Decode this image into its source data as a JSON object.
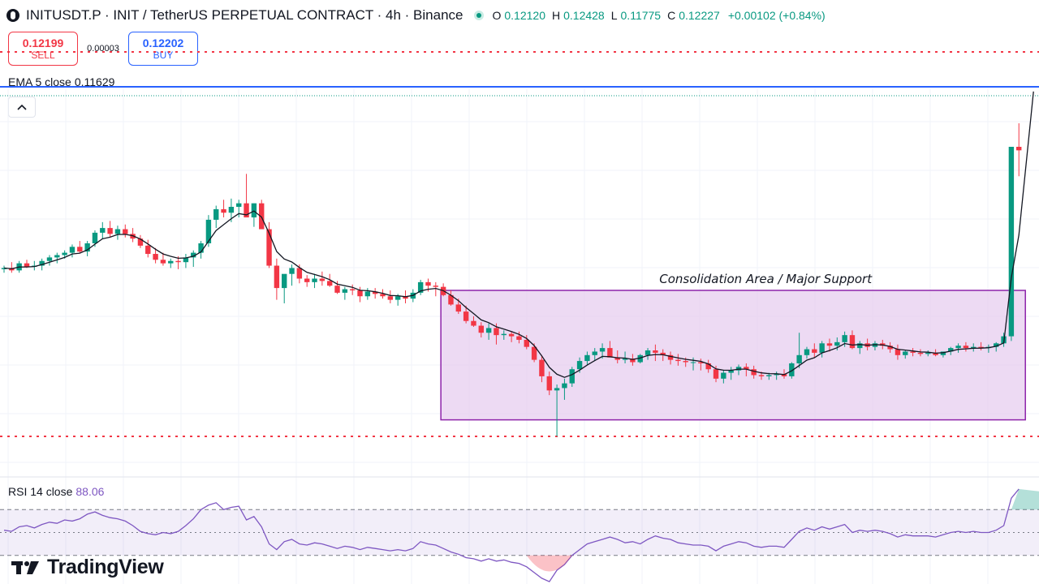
{
  "header": {
    "symbol_title": "INITUSDT.P · INIT / TetherUS PERPETUAL CONTRACT · 4h · Binance",
    "open_label": "O",
    "open": "0.12120",
    "high_label": "H",
    "high": "0.12428",
    "low_label": "L",
    "low": "0.11775",
    "close_label": "C",
    "close": "0.12227",
    "change": "+0.00102 (+0.84%)"
  },
  "trade": {
    "sell_price": "0.12199",
    "sell_label": "SELL",
    "spread": "0.00003",
    "buy_price": "0.12202",
    "buy_label": "BUY"
  },
  "ema_legend": {
    "label": "EMA 5 close",
    "value": "0.11629"
  },
  "rsi_legend": {
    "label": "RSI 14 close",
    "value": "88.06"
  },
  "logo": {
    "text": "TradingView"
  },
  "annotation": {
    "text": "Consolidation Area / Major Support"
  },
  "colors": {
    "up": "#089981",
    "down": "#f23645",
    "ema": "#131722",
    "rsi": "#7e57c2",
    "box_fill": "#e7cdef",
    "box_stroke": "#8e24aa",
    "level_line": "#2962ff"
  },
  "chart_data": {
    "type": "candlestick",
    "timeframe": "4h",
    "price_range": [
      0.0895,
      0.1221
    ],
    "candles_ohlc": [
      [
        0.1066,
        0.1069,
        0.1063,
        0.1067
      ],
      [
        0.1067,
        0.1072,
        0.1063,
        0.1065
      ],
      [
        0.1065,
        0.1073,
        0.1063,
        0.1071
      ],
      [
        0.1071,
        0.1074,
        0.1067,
        0.1068
      ],
      [
        0.1068,
        0.1073,
        0.1065,
        0.1069
      ],
      [
        0.1069,
        0.1075,
        0.1065,
        0.1073
      ],
      [
        0.1073,
        0.1078,
        0.1069,
        0.1076
      ],
      [
        0.1076,
        0.108,
        0.1071,
        0.1078
      ],
      [
        0.1078,
        0.1082,
        0.1075,
        0.108
      ],
      [
        0.108,
        0.1087,
        0.1076,
        0.1085
      ],
      [
        0.1085,
        0.109,
        0.108,
        0.1081
      ],
      [
        0.1081,
        0.109,
        0.1077,
        0.1088
      ],
      [
        0.1088,
        0.1099,
        0.1085,
        0.1097
      ],
      [
        0.1097,
        0.1106,
        0.1092,
        0.1101
      ],
      [
        0.1101,
        0.1107,
        0.1093,
        0.1096
      ],
      [
        0.1096,
        0.1103,
        0.1091,
        0.11
      ],
      [
        0.11,
        0.1104,
        0.1093,
        0.1096
      ],
      [
        0.1096,
        0.1101,
        0.1089,
        0.1092
      ],
      [
        0.1092,
        0.1095,
        0.1084,
        0.1086
      ],
      [
        0.1086,
        0.1091,
        0.1076,
        0.1079
      ],
      [
        0.1079,
        0.1084,
        0.1071,
        0.1074
      ],
      [
        0.1074,
        0.108,
        0.1069,
        0.1071
      ],
      [
        0.1071,
        0.1075,
        0.1067,
        0.1073
      ],
      [
        0.1073,
        0.1077,
        0.1066,
        0.1072
      ],
      [
        0.1072,
        0.1079,
        0.1067,
        0.1076
      ],
      [
        0.1076,
        0.1082,
        0.1068,
        0.108
      ],
      [
        0.108,
        0.109,
        0.1075,
        0.1088
      ],
      [
        0.1088,
        0.1112,
        0.1085,
        0.1108
      ],
      [
        0.1108,
        0.112,
        0.1101,
        0.1117
      ],
      [
        0.1117,
        0.1125,
        0.111,
        0.1114
      ],
      [
        0.1114,
        0.1126,
        0.1106,
        0.1119
      ],
      [
        0.1119,
        0.1125,
        0.111,
        0.1122
      ],
      [
        0.1122,
        0.1147,
        0.1115,
        0.111
      ],
      [
        0.111,
        0.1122,
        0.1102,
        0.1122
      ],
      [
        0.1122,
        0.1125,
        0.11,
        0.11
      ],
      [
        0.11,
        0.1106,
        0.1067,
        0.1069
      ],
      [
        0.1069,
        0.1075,
        0.104,
        0.105
      ],
      [
        0.105,
        0.1058,
        0.1037,
        0.1062
      ],
      [
        0.1062,
        0.107,
        0.1052,
        0.1067
      ],
      [
        0.1067,
        0.107,
        0.1054,
        0.1058
      ],
      [
        0.1058,
        0.1061,
        0.1051,
        0.1055
      ],
      [
        0.1055,
        0.1062,
        0.105,
        0.1058
      ],
      [
        0.1058,
        0.1064,
        0.1052,
        0.1056
      ],
      [
        0.1056,
        0.1062,
        0.1051,
        0.1052
      ],
      [
        0.1052,
        0.1056,
        0.1045,
        0.1046
      ],
      [
        0.1046,
        0.1051,
        0.104,
        0.1049
      ],
      [
        0.1049,
        0.1053,
        0.1044,
        0.1048
      ],
      [
        0.1048,
        0.1051,
        0.1038,
        0.1043
      ],
      [
        0.1043,
        0.105,
        0.104,
        0.1047
      ],
      [
        0.1047,
        0.105,
        0.1041,
        0.1045
      ],
      [
        0.1045,
        0.1049,
        0.1041,
        0.1043
      ],
      [
        0.1043,
        0.1048,
        0.1037,
        0.104
      ],
      [
        0.104,
        0.1045,
        0.1035,
        0.1043
      ],
      [
        0.1043,
        0.1048,
        0.1037,
        0.1041
      ],
      [
        0.1041,
        0.1049,
        0.1038,
        0.1046
      ],
      [
        0.1046,
        0.1057,
        0.1044,
        0.1055
      ],
      [
        0.1055,
        0.1058,
        0.1047,
        0.1052
      ],
      [
        0.1052,
        0.1055,
        0.1043,
        0.1051
      ],
      [
        0.1051,
        0.1054,
        0.1043,
        0.1044
      ],
      [
        0.1044,
        0.1048,
        0.1035,
        0.1036
      ],
      [
        0.1036,
        0.1041,
        0.1028,
        0.103
      ],
      [
        0.103,
        0.1035,
        0.102,
        0.1022
      ],
      [
        0.1022,
        0.1026,
        0.1017,
        0.1018
      ],
      [
        0.1018,
        0.1021,
        0.1008,
        0.1012
      ],
      [
        0.1012,
        0.102,
        0.1006,
        0.1016
      ],
      [
        0.1016,
        0.102,
        0.1002,
        0.101
      ],
      [
        0.101,
        0.1014,
        0.1006,
        0.1011
      ],
      [
        0.1011,
        0.1013,
        0.1004,
        0.1009
      ],
      [
        0.1009,
        0.1013,
        0.1003,
        0.1006
      ],
      [
        0.1006,
        0.101,
        0.0998,
        0.1
      ],
      [
        0.1,
        0.1003,
        0.0987,
        0.0989
      ],
      [
        0.0989,
        0.0993,
        0.097,
        0.0975
      ],
      [
        0.0975,
        0.0979,
        0.0959,
        0.0963
      ],
      [
        0.0963,
        0.0968,
        0.0924,
        0.0965
      ],
      [
        0.0965,
        0.0973,
        0.0955,
        0.0969
      ],
      [
        0.0969,
        0.0983,
        0.0966,
        0.0981
      ],
      [
        0.0981,
        0.0991,
        0.0978,
        0.0988
      ],
      [
        0.0988,
        0.0996,
        0.0985,
        0.0993
      ],
      [
        0.0993,
        0.0999,
        0.0988,
        0.0996
      ],
      [
        0.0996,
        0.1003,
        0.099,
        0.0999
      ],
      [
        0.0999,
        0.1005,
        0.0993,
        0.0991
      ],
      [
        0.0991,
        0.0997,
        0.0986,
        0.0989
      ],
      [
        0.0989,
        0.0996,
        0.0986,
        0.099
      ],
      [
        0.099,
        0.0994,
        0.0984,
        0.0987
      ],
      [
        0.0987,
        0.0994,
        0.0986,
        0.0993
      ],
      [
        0.0993,
        0.0999,
        0.0989,
        0.0997
      ],
      [
        0.0997,
        0.1002,
        0.0988,
        0.0995
      ],
      [
        0.0995,
        0.0998,
        0.0988,
        0.0993
      ],
      [
        0.0993,
        0.0996,
        0.0985,
        0.0989
      ],
      [
        0.0989,
        0.0994,
        0.0984,
        0.0988
      ],
      [
        0.0988,
        0.0991,
        0.0983,
        0.0987
      ],
      [
        0.0987,
        0.0991,
        0.098,
        0.0987
      ],
      [
        0.0987,
        0.099,
        0.098,
        0.0986
      ],
      [
        0.0986,
        0.0989,
        0.0978,
        0.0981
      ],
      [
        0.0981,
        0.0984,
        0.097,
        0.0973
      ],
      [
        0.0973,
        0.098,
        0.0969,
        0.0978
      ],
      [
        0.0978,
        0.0983,
        0.0972,
        0.098
      ],
      [
        0.098,
        0.0985,
        0.0976,
        0.0983
      ],
      [
        0.0983,
        0.0986,
        0.0975,
        0.0981
      ],
      [
        0.0981,
        0.0984,
        0.0973,
        0.0976
      ],
      [
        0.0976,
        0.0979,
        0.0972,
        0.0975
      ],
      [
        0.0975,
        0.0978,
        0.0972,
        0.0976
      ],
      [
        0.0976,
        0.0979,
        0.0972,
        0.0977
      ],
      [
        0.0977,
        0.0981,
        0.0973,
        0.0975
      ],
      [
        0.0975,
        0.0987,
        0.0973,
        0.0986
      ],
      [
        0.0986,
        0.1012,
        0.0982,
        0.0993
      ],
      [
        0.0993,
        0.1,
        0.099,
        0.0998
      ],
      [
        0.0998,
        0.1003,
        0.0991,
        0.0995
      ],
      [
        0.0995,
        0.1005,
        0.0991,
        0.1003
      ],
      [
        0.1003,
        0.1007,
        0.0996,
        0.1001
      ],
      [
        0.1001,
        0.1008,
        0.0997,
        0.1004
      ],
      [
        0.1004,
        0.1013,
        0.1,
        0.101
      ],
      [
        0.101,
        0.1014,
        0.0998,
        0.0999
      ],
      [
        0.0999,
        0.1005,
        0.0994,
        0.1003
      ],
      [
        0.1003,
        0.1007,
        0.0997,
        0.1
      ],
      [
        0.1,
        0.1005,
        0.0997,
        0.1003
      ],
      [
        0.1003,
        0.1006,
        0.0998,
        0.1001
      ],
      [
        0.1001,
        0.1004,
        0.0995,
        0.0998
      ],
      [
        0.0998,
        0.1002,
        0.0989,
        0.0993
      ],
      [
        0.0993,
        0.0997,
        0.099,
        0.0996
      ],
      [
        0.0996,
        0.0999,
        0.0992,
        0.0995
      ],
      [
        0.0995,
        0.0998,
        0.0992,
        0.0994
      ],
      [
        0.0994,
        0.0997,
        0.0992,
        0.0995
      ],
      [
        0.0995,
        0.0998,
        0.0992,
        0.0993
      ],
      [
        0.0993,
        0.0996,
        0.0991,
        0.0996
      ],
      [
        0.0996,
        0.1,
        0.0993,
        0.0999
      ],
      [
        0.0999,
        0.1003,
        0.0995,
        0.1001
      ],
      [
        0.1001,
        0.1004,
        0.0996,
        0.0999
      ],
      [
        0.0999,
        0.1003,
        0.0996,
        0.1
      ],
      [
        0.1,
        0.1004,
        0.0997,
        0.0999
      ],
      [
        0.0999,
        0.1002,
        0.0995,
        0.1
      ],
      [
        0.1,
        0.1004,
        0.0996,
        0.1003
      ],
      [
        0.1003,
        0.1012,
        0.1,
        0.1009
      ],
      [
        0.1009,
        0.1045,
        0.1005,
        0.117
      ],
      [
        0.117,
        0.119,
        0.1145,
        0.1167
      ]
    ],
    "ema": {
      "name": "EMA 5 close",
      "value": 0.11629
    },
    "rsi": {
      "name": "RSI 14 close",
      "value": 88.06,
      "levels": [
        70,
        50,
        30
      ],
      "values": [
        52,
        51,
        55,
        56,
        54,
        57,
        59,
        58,
        61,
        60,
        62,
        66,
        68,
        65,
        63,
        62,
        60,
        56,
        51,
        49,
        48,
        50,
        49,
        51,
        56,
        62,
        70,
        74,
        76,
        70,
        72,
        73,
        61,
        64,
        55,
        40,
        35,
        42,
        44,
        40,
        39,
        41,
        40,
        38,
        36,
        38,
        37,
        35,
        37,
        36,
        35,
        34,
        35,
        34,
        36,
        42,
        40,
        39,
        36,
        33,
        31,
        28,
        27,
        25,
        27,
        25,
        26,
        24,
        23,
        20,
        15,
        10,
        7,
        17,
        22,
        30,
        35,
        40,
        42,
        44,
        46,
        44,
        41,
        42,
        40,
        44,
        47,
        45,
        44,
        41,
        40,
        39,
        39,
        38,
        34,
        38,
        40,
        42,
        41,
        38,
        37,
        38,
        38,
        37,
        44,
        51,
        54,
        52,
        55,
        53,
        55,
        57,
        50,
        52,
        51,
        52,
        51,
        49,
        46,
        48,
        47,
        47,
        47,
        46,
        48,
        50,
        51,
        50,
        51,
        50,
        50,
        52,
        56,
        80,
        88
      ]
    },
    "annotation": "Consolidation Area / Major Support"
  }
}
